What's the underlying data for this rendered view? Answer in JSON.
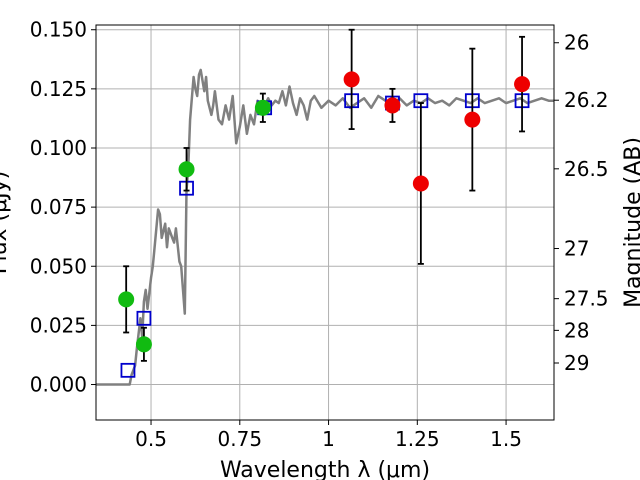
{
  "chart_data": {
    "type": "scatter",
    "xlabel": "Wavelength λ (μm)",
    "ylabel_left": "Flux (μJy)",
    "ylabel_right": "Magnitude (AB)",
    "xlim": [
      0.345,
      1.635
    ],
    "ylim": [
      -0.015,
      0.152
    ],
    "grid": true,
    "x_ticks": [
      {
        "value": 0.5,
        "label": "0.5"
      },
      {
        "value": 0.75,
        "label": "0.75"
      },
      {
        "value": 1.0,
        "label": "1"
      },
      {
        "value": 1.25,
        "label": "1.25"
      },
      {
        "value": 1.5,
        "label": "1.5"
      }
    ],
    "y_ticks": [
      {
        "value": 0.0,
        "label": "0.000"
      },
      {
        "value": 0.025,
        "label": "0.025"
      },
      {
        "value": 0.05,
        "label": "0.050"
      },
      {
        "value": 0.075,
        "label": "0.075"
      },
      {
        "value": 0.1,
        "label": "0.100"
      },
      {
        "value": 0.125,
        "label": "0.125"
      },
      {
        "value": 0.15,
        "label": "0.150"
      }
    ],
    "right_ticks": [
      {
        "label": "26",
        "flux": 0.1445
      },
      {
        "label": "26.2",
        "flux": 0.1202
      },
      {
        "label": "26.5",
        "flux": 0.0912
      },
      {
        "label": "27",
        "flux": 0.0575
      },
      {
        "label": "27.5",
        "flux": 0.0363
      },
      {
        "label": "28",
        "flux": 0.0229
      },
      {
        "label": "29",
        "flux": 0.0091
      }
    ],
    "series": [
      {
        "kind": "line",
        "color": "#808080",
        "x": [
          0.345,
          0.44,
          0.445,
          0.455,
          0.46,
          0.47,
          0.475,
          0.48,
          0.485,
          0.49,
          0.5,
          0.505,
          0.51,
          0.52,
          0.525,
          0.53,
          0.54,
          0.545,
          0.55,
          0.56,
          0.565,
          0.57,
          0.58,
          0.585,
          0.59,
          0.595,
          0.6,
          0.605,
          0.61,
          0.62,
          0.625,
          0.63,
          0.635,
          0.64,
          0.65,
          0.655,
          0.66,
          0.67,
          0.675,
          0.68,
          0.69,
          0.7,
          0.71,
          0.72,
          0.73,
          0.74,
          0.75,
          0.76,
          0.77,
          0.78,
          0.79,
          0.8,
          0.81,
          0.82,
          0.83,
          0.84,
          0.85,
          0.86,
          0.87,
          0.88,
          0.89,
          0.9,
          0.91,
          0.92,
          0.93,
          0.94,
          0.95,
          0.96,
          0.98,
          1.0,
          1.02,
          1.04,
          1.06,
          1.08,
          1.1,
          1.12,
          1.14,
          1.16,
          1.18,
          1.2,
          1.22,
          1.24,
          1.26,
          1.28,
          1.3,
          1.32,
          1.34,
          1.36,
          1.38,
          1.4,
          1.42,
          1.44,
          1.46,
          1.48,
          1.5,
          1.52,
          1.54,
          1.56,
          1.58,
          1.6,
          1.62,
          1.635
        ],
        "y": [
          0.0,
          0.0,
          0.004,
          0.008,
          0.015,
          0.028,
          0.02,
          0.035,
          0.04,
          0.032,
          0.045,
          0.05,
          0.058,
          0.074,
          0.072,
          0.062,
          0.068,
          0.058,
          0.066,
          0.062,
          0.06,
          0.066,
          0.052,
          0.05,
          0.04,
          0.03,
          0.082,
          0.092,
          0.112,
          0.13,
          0.125,
          0.122,
          0.131,
          0.133,
          0.124,
          0.13,
          0.12,
          0.114,
          0.118,
          0.124,
          0.112,
          0.11,
          0.118,
          0.112,
          0.122,
          0.102,
          0.109,
          0.118,
          0.106,
          0.114,
          0.11,
          0.12,
          0.117,
          0.118,
          0.121,
          0.118,
          0.12,
          0.119,
          0.124,
          0.118,
          0.126,
          0.119,
          0.114,
          0.121,
          0.118,
          0.112,
          0.12,
          0.122,
          0.117,
          0.12,
          0.118,
          0.121,
          0.117,
          0.119,
          0.121,
          0.117,
          0.122,
          0.12,
          0.118,
          0.121,
          0.118,
          0.12,
          0.119,
          0.121,
          0.119,
          0.12,
          0.118,
          0.121,
          0.12,
          0.119,
          0.121,
          0.119,
          0.12,
          0.121,
          0.119,
          0.12,
          0.121,
          0.119,
          0.12,
          0.121,
          0.12,
          0.12
        ]
      },
      {
        "kind": "square",
        "color": "#0000cc",
        "x": [
          0.435,
          0.48,
          0.6,
          0.82,
          1.065,
          1.18,
          1.26,
          1.405,
          1.545
        ],
        "y": [
          0.006,
          0.028,
          0.083,
          0.117,
          0.12,
          0.119,
          0.12,
          0.12,
          0.12
        ]
      },
      {
        "kind": "circle",
        "color": "#11bb11",
        "x": [
          0.43,
          0.48,
          0.6,
          0.815
        ],
        "y": [
          0.036,
          0.017,
          0.091,
          0.117
        ],
        "err": [
          0.014,
          0.007,
          0.009,
          0.006
        ]
      },
      {
        "kind": "circle",
        "color": "#ee0000",
        "x": [
          1.065,
          1.18,
          1.26,
          1.405,
          1.545
        ],
        "y": [
          0.129,
          0.118,
          0.085,
          0.112,
          0.127
        ],
        "err": [
          0.021,
          0.007,
          0.034,
          0.03,
          0.02
        ]
      }
    ]
  }
}
